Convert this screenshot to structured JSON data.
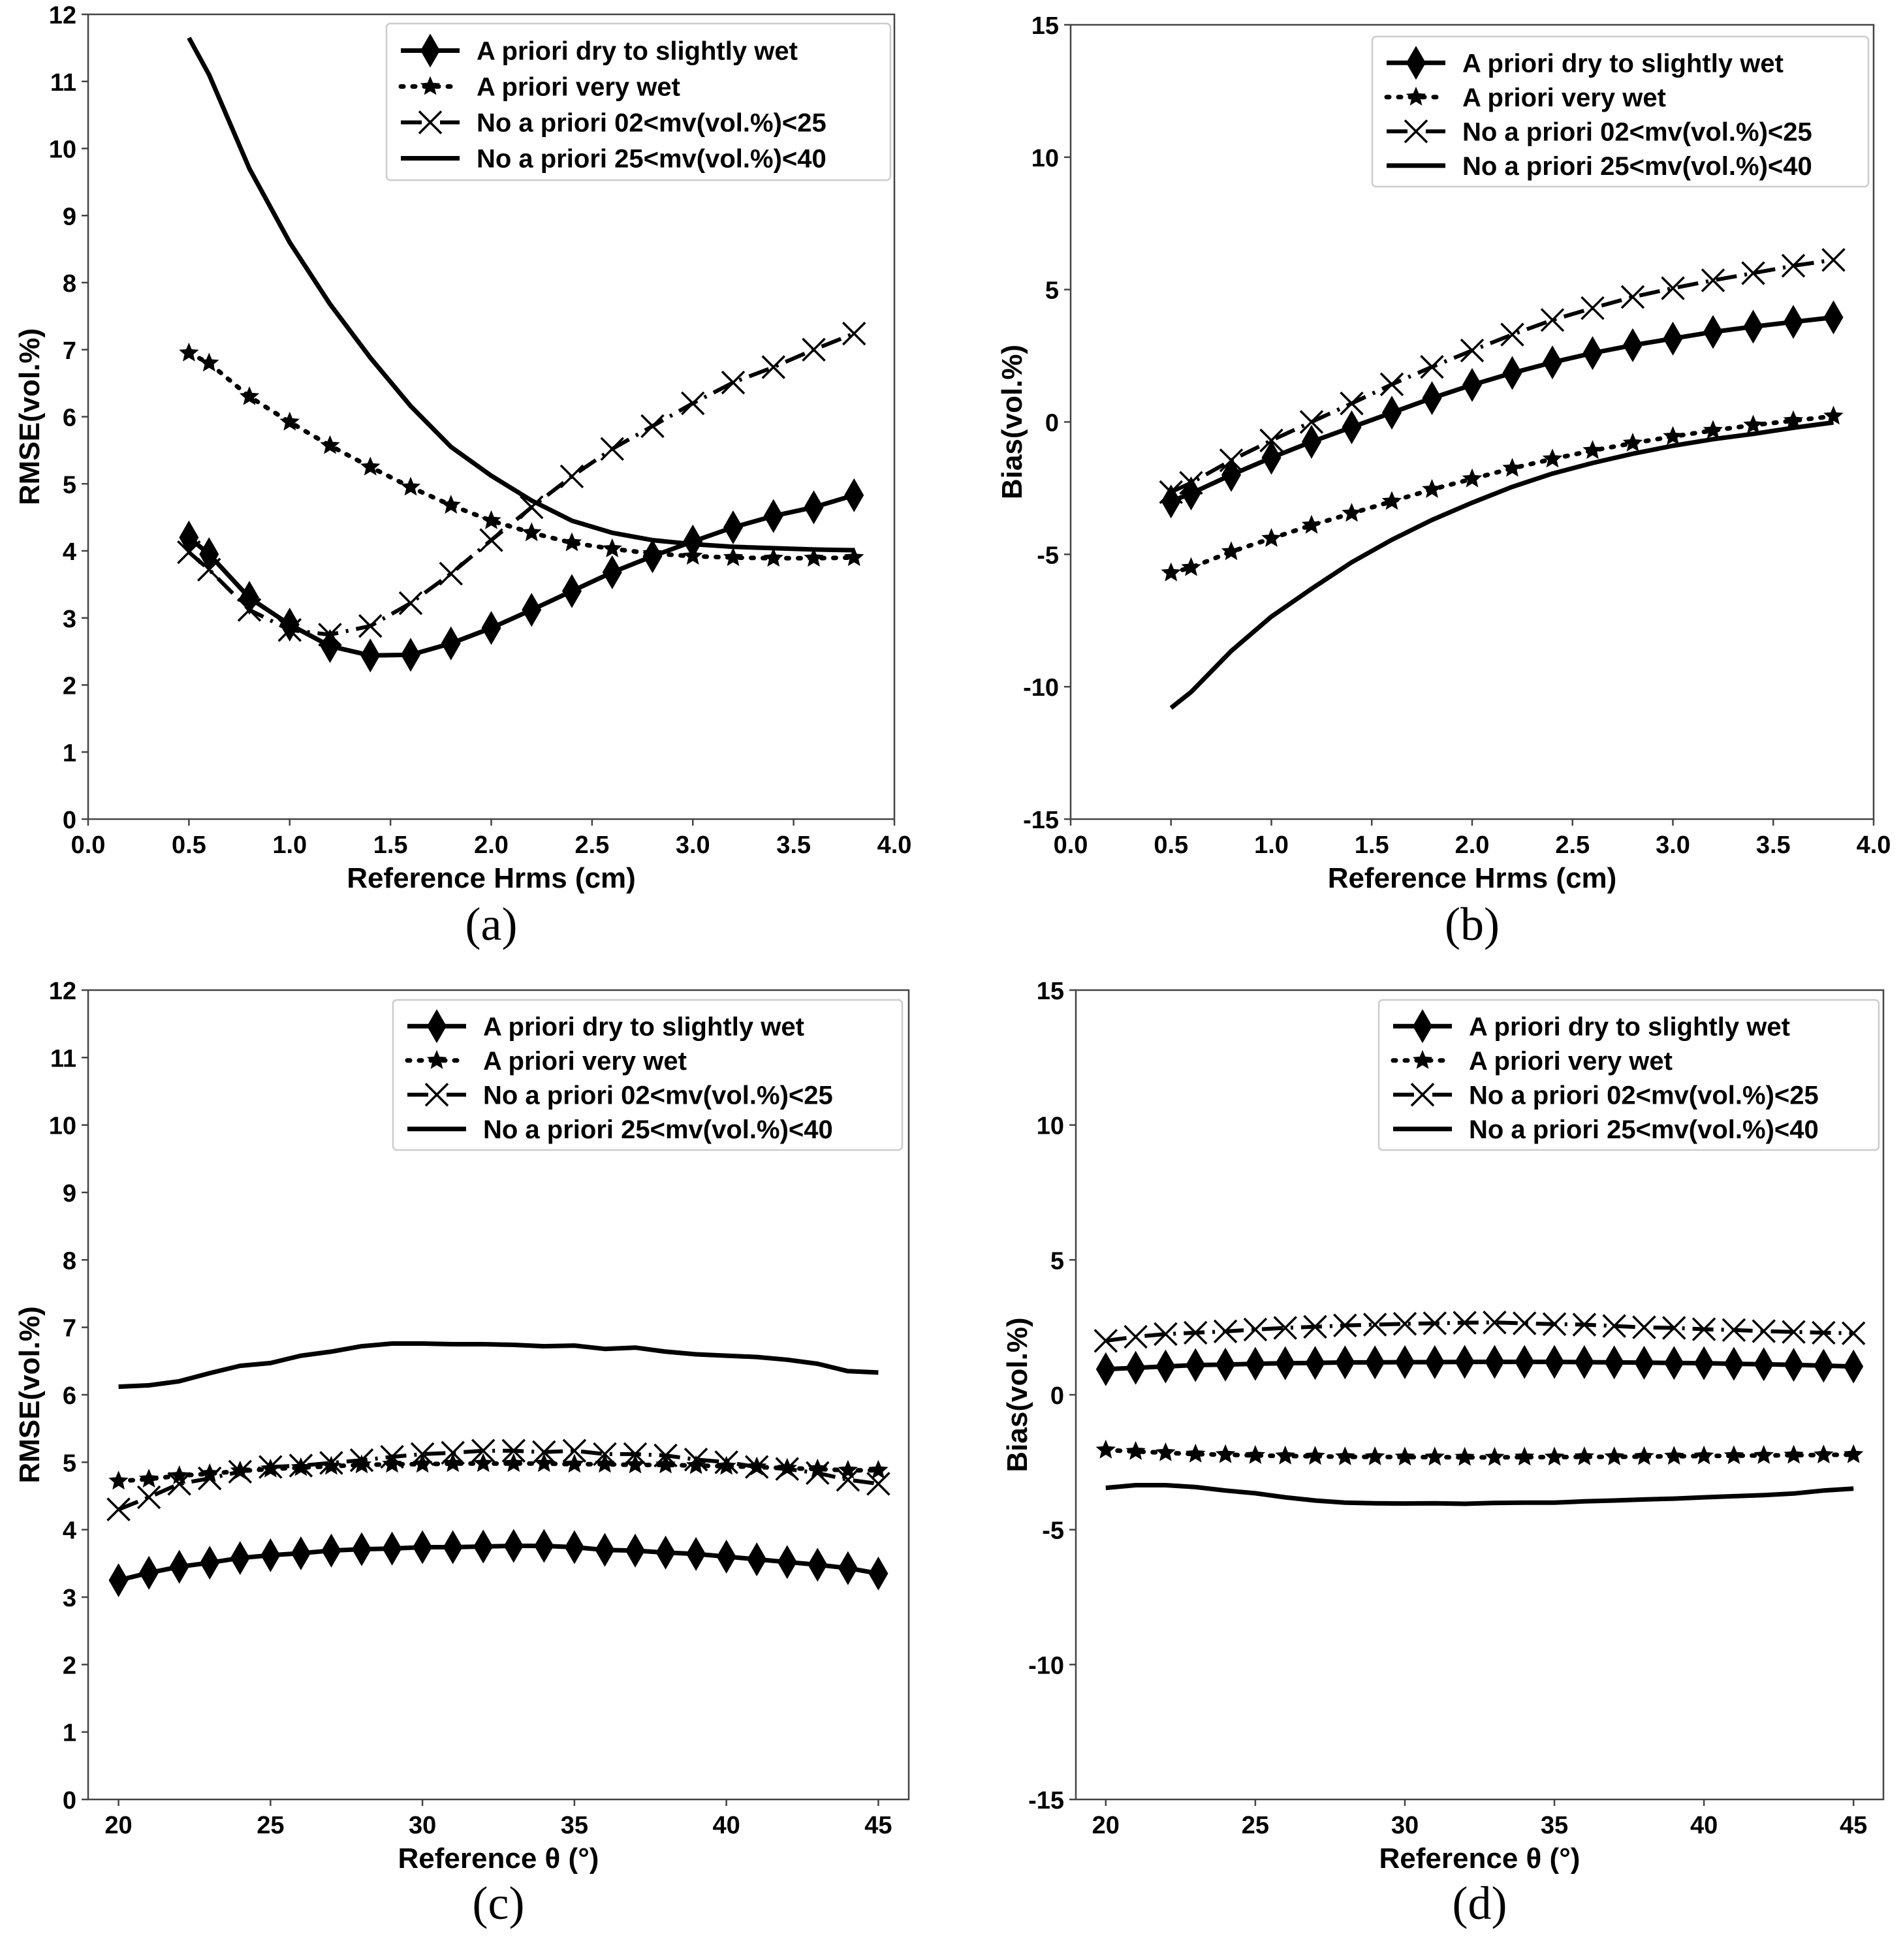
{
  "legend_labels": [
    "A priori dry to slightly wet",
    "A priori very wet",
    "No a priori 02<mv(vol.%)<25",
    "No a priori 25<mv(vol.%)<40"
  ],
  "chart_data": [
    {
      "id": "a",
      "type": "line",
      "panel_label": "(a)",
      "xlabel": "Reference Hrms (cm)",
      "ylabel": "RMSE(vol.%)",
      "xlim": [
        0,
        4
      ],
      "ylim": [
        0,
        12
      ],
      "xticks": [
        0,
        0.5,
        1,
        1.5,
        2,
        2.5,
        3,
        3.5,
        4
      ],
      "xtick_labels": [
        "0.0",
        "0.5",
        "1.0",
        "1.5",
        "2.0",
        "2.5",
        "3.0",
        "3.5",
        "4.0"
      ],
      "yticks": [
        0,
        1,
        2,
        3,
        4,
        5,
        6,
        7,
        8,
        9,
        10,
        11,
        12
      ],
      "ytick_labels": [
        "0",
        "1",
        "2",
        "3",
        "4",
        "5",
        "6",
        "7",
        "8",
        "9",
        "10",
        "11",
        "12"
      ],
      "x": [
        0.5,
        0.6,
        0.8,
        1.0,
        1.2,
        1.4,
        1.6,
        1.8,
        2.0,
        2.2,
        2.4,
        2.6,
        2.8,
        3.0,
        3.2,
        3.4,
        3.6,
        3.8
      ],
      "series": [
        {
          "name": "A priori dry to slightly wet",
          "marker": "diamond",
          "style": "solid",
          "values": [
            4.2,
            3.95,
            3.3,
            2.9,
            2.58,
            2.44,
            2.45,
            2.62,
            2.85,
            3.12,
            3.4,
            3.68,
            3.92,
            4.14,
            4.35,
            4.52,
            4.65,
            4.83
          ]
        },
        {
          "name": "A priori very wet",
          "marker": "star",
          "style": "dotted",
          "values": [
            6.95,
            6.8,
            6.3,
            5.92,
            5.57,
            5.25,
            4.95,
            4.68,
            4.45,
            4.27,
            4.12,
            4.03,
            3.96,
            3.92,
            3.9,
            3.89,
            3.89,
            3.9
          ]
        },
        {
          "name": "No a priori 02<mv(vol.%)<25",
          "marker": "x",
          "style": "dashdot",
          "values": [
            3.98,
            3.72,
            3.12,
            2.82,
            2.75,
            2.88,
            3.22,
            3.66,
            4.16,
            4.65,
            5.11,
            5.52,
            5.86,
            6.2,
            6.51,
            6.74,
            7.0,
            7.24
          ]
        },
        {
          "name": "No a priori 25<mv(vol.%)<40",
          "marker": "none",
          "style": "solid",
          "values": [
            11.65,
            11.1,
            9.7,
            8.6,
            7.68,
            6.88,
            6.16,
            5.55,
            5.12,
            4.75,
            4.45,
            4.27,
            4.16,
            4.1,
            4.06,
            4.04,
            4.02,
            4.01
          ]
        }
      ],
      "legend_position": "top-right"
    },
    {
      "id": "b",
      "type": "line",
      "panel_label": "(b)",
      "xlabel": "Reference Hrms (cm)",
      "ylabel": "Bias(vol.%)",
      "xlim": [
        0,
        4
      ],
      "ylim": [
        -15,
        15
      ],
      "xticks": [
        0,
        0.5,
        1,
        1.5,
        2,
        2.5,
        3,
        3.5,
        4
      ],
      "xtick_labels": [
        "0.0",
        "0.5",
        "1.0",
        "1.5",
        "2.0",
        "2.5",
        "3.0",
        "3.5",
        "4.0"
      ],
      "yticks": [
        -15,
        -10,
        -5,
        0,
        5,
        10,
        15
      ],
      "ytick_labels": [
        "-15",
        "-10",
        "-5",
        "0",
        "5",
        "10",
        "15"
      ],
      "x": [
        0.5,
        0.6,
        0.8,
        1.0,
        1.2,
        1.4,
        1.6,
        1.8,
        2.0,
        2.2,
        2.4,
        2.6,
        2.8,
        3.0,
        3.2,
        3.4,
        3.6,
        3.8
      ],
      "series": [
        {
          "name": "A priori dry to slightly wet",
          "marker": "diamond",
          "style": "solid",
          "values": [
            -3.0,
            -2.7,
            -2.0,
            -1.35,
            -0.75,
            -0.2,
            0.35,
            0.9,
            1.4,
            1.85,
            2.25,
            2.6,
            2.9,
            3.15,
            3.4,
            3.6,
            3.78,
            3.95
          ]
        },
        {
          "name": "A priori very wet",
          "marker": "star",
          "style": "dotted",
          "values": [
            -5.7,
            -5.5,
            -4.9,
            -4.4,
            -3.9,
            -3.45,
            -3.0,
            -2.55,
            -2.15,
            -1.75,
            -1.4,
            -1.08,
            -0.8,
            -0.55,
            -0.32,
            -0.12,
            0.05,
            0.22
          ]
        },
        {
          "name": "No a priori 02<mv(vol.%)<25",
          "marker": "x",
          "style": "dashdot",
          "values": [
            -2.65,
            -2.3,
            -1.45,
            -0.7,
            0.0,
            0.7,
            1.42,
            2.08,
            2.7,
            3.3,
            3.85,
            4.3,
            4.72,
            5.05,
            5.35,
            5.62,
            5.9,
            6.12
          ]
        },
        {
          "name": "No a priori 25<mv(vol.%)<40",
          "marker": "none",
          "style": "solid",
          "values": [
            -10.8,
            -10.2,
            -8.65,
            -7.35,
            -6.3,
            -5.3,
            -4.45,
            -3.7,
            -3.05,
            -2.45,
            -1.95,
            -1.55,
            -1.2,
            -0.9,
            -0.65,
            -0.45,
            -0.22,
            -0.02
          ]
        }
      ],
      "legend_position": "top-right"
    },
    {
      "id": "c",
      "type": "line",
      "panel_label": "(c)",
      "xlabel": "Reference θ (°)",
      "ylabel": "RMSE(vol.%)",
      "xlim": [
        19,
        46
      ],
      "ylim": [
        0,
        12
      ],
      "xticks": [
        20,
        25,
        30,
        35,
        40,
        45
      ],
      "xtick_labels": [
        "20",
        "25",
        "30",
        "35",
        "40",
        "45"
      ],
      "yticks": [
        0,
        1,
        2,
        3,
        4,
        5,
        6,
        7,
        8,
        9,
        10,
        11,
        12
      ],
      "ytick_labels": [
        "0",
        "1",
        "2",
        "3",
        "4",
        "5",
        "6",
        "7",
        "8",
        "9",
        "10",
        "11",
        "12"
      ],
      "x": [
        20,
        21,
        22,
        23,
        24,
        25,
        26,
        27,
        28,
        29,
        30,
        31,
        32,
        33,
        34,
        35,
        36,
        37,
        38,
        39,
        40,
        41,
        42,
        43,
        44,
        45
      ],
      "series": [
        {
          "name": "A priori dry to slightly wet",
          "marker": "diamond",
          "style": "solid",
          "values": [
            3.25,
            3.36,
            3.45,
            3.51,
            3.58,
            3.62,
            3.65,
            3.69,
            3.71,
            3.72,
            3.74,
            3.74,
            3.75,
            3.76,
            3.76,
            3.74,
            3.7,
            3.69,
            3.66,
            3.64,
            3.6,
            3.56,
            3.52,
            3.48,
            3.43,
            3.35
          ]
        },
        {
          "name": "A priori very wet",
          "marker": "star",
          "style": "dotted",
          "values": [
            4.72,
            4.75,
            4.8,
            4.83,
            4.87,
            4.9,
            4.92,
            4.94,
            4.96,
            4.97,
            4.97,
            4.98,
            4.98,
            4.98,
            4.98,
            4.97,
            4.97,
            4.96,
            4.96,
            4.95,
            4.94,
            4.93,
            4.91,
            4.9,
            4.88,
            4.88
          ]
        },
        {
          "name": "No a priori 02<mv(vol.%)<25",
          "marker": "x",
          "style": "dashdot",
          "values": [
            4.3,
            4.48,
            4.68,
            4.76,
            4.86,
            4.93,
            4.95,
            4.99,
            5.03,
            5.08,
            5.12,
            5.14,
            5.17,
            5.17,
            5.15,
            5.17,
            5.12,
            5.12,
            5.1,
            5.04,
            5.0,
            4.93,
            4.9,
            4.84,
            4.74,
            4.68
          ]
        },
        {
          "name": "No a priori 25<mv(vol.%)<40",
          "marker": "none",
          "style": "solid",
          "values": [
            6.12,
            6.14,
            6.2,
            6.32,
            6.43,
            6.47,
            6.58,
            6.64,
            6.72,
            6.76,
            6.76,
            6.75,
            6.75,
            6.74,
            6.72,
            6.73,
            6.68,
            6.7,
            6.64,
            6.6,
            6.58,
            6.56,
            6.52,
            6.46,
            6.35,
            6.33
          ]
        }
      ],
      "legend_position": "top-right"
    },
    {
      "id": "d",
      "type": "line",
      "panel_label": "(d)",
      "xlabel": "Reference θ (°)",
      "ylabel": "Bias(vol.%)",
      "xlim": [
        19,
        46
      ],
      "ylim": [
        -15,
        15
      ],
      "xticks": [
        20,
        25,
        30,
        35,
        40,
        45
      ],
      "xtick_labels": [
        "20",
        "25",
        "30",
        "35",
        "40",
        "45"
      ],
      "yticks": [
        -15,
        -10,
        -5,
        0,
        5,
        10,
        15
      ],
      "ytick_labels": [
        "-15",
        "-10",
        "-5",
        "0",
        "5",
        "10",
        "15"
      ],
      "x": [
        20,
        21,
        22,
        23,
        24,
        25,
        26,
        27,
        28,
        29,
        30,
        31,
        32,
        33,
        34,
        35,
        36,
        37,
        38,
        39,
        40,
        41,
        42,
        43,
        44,
        45
      ],
      "series": [
        {
          "name": "A priori dry to slightly wet",
          "marker": "diamond",
          "style": "solid",
          "values": [
            0.95,
            1.0,
            1.05,
            1.1,
            1.12,
            1.15,
            1.17,
            1.18,
            1.2,
            1.2,
            1.21,
            1.21,
            1.22,
            1.22,
            1.22,
            1.22,
            1.21,
            1.2,
            1.19,
            1.18,
            1.17,
            1.15,
            1.13,
            1.11,
            1.08,
            1.05
          ]
        },
        {
          "name": "A priori very wet",
          "marker": "star",
          "style": "dotted",
          "values": [
            -2.05,
            -2.1,
            -2.15,
            -2.2,
            -2.22,
            -2.25,
            -2.27,
            -2.28,
            -2.3,
            -2.3,
            -2.31,
            -2.31,
            -2.32,
            -2.32,
            -2.31,
            -2.31,
            -2.3,
            -2.3,
            -2.29,
            -2.28,
            -2.27,
            -2.26,
            -2.25,
            -2.24,
            -2.23,
            -2.22
          ]
        },
        {
          "name": "No a priori 02<mv(vol.%)<25",
          "marker": "x",
          "style": "dashdot",
          "values": [
            2.0,
            2.15,
            2.25,
            2.3,
            2.35,
            2.42,
            2.48,
            2.52,
            2.57,
            2.6,
            2.63,
            2.65,
            2.67,
            2.68,
            2.65,
            2.62,
            2.6,
            2.55,
            2.5,
            2.48,
            2.43,
            2.4,
            2.36,
            2.33,
            2.3,
            2.28
          ]
        },
        {
          "name": "No a priori 25<mv(vol.%)<40",
          "marker": "none",
          "style": "solid",
          "values": [
            -3.45,
            -3.35,
            -3.35,
            -3.42,
            -3.55,
            -3.65,
            -3.8,
            -3.92,
            -4.0,
            -4.02,
            -4.03,
            -4.02,
            -4.04,
            -4.01,
            -4.0,
            -4.0,
            -3.95,
            -3.92,
            -3.88,
            -3.85,
            -3.8,
            -3.76,
            -3.72,
            -3.66,
            -3.55,
            -3.48
          ]
        }
      ],
      "legend_position": "top-right"
    }
  ]
}
